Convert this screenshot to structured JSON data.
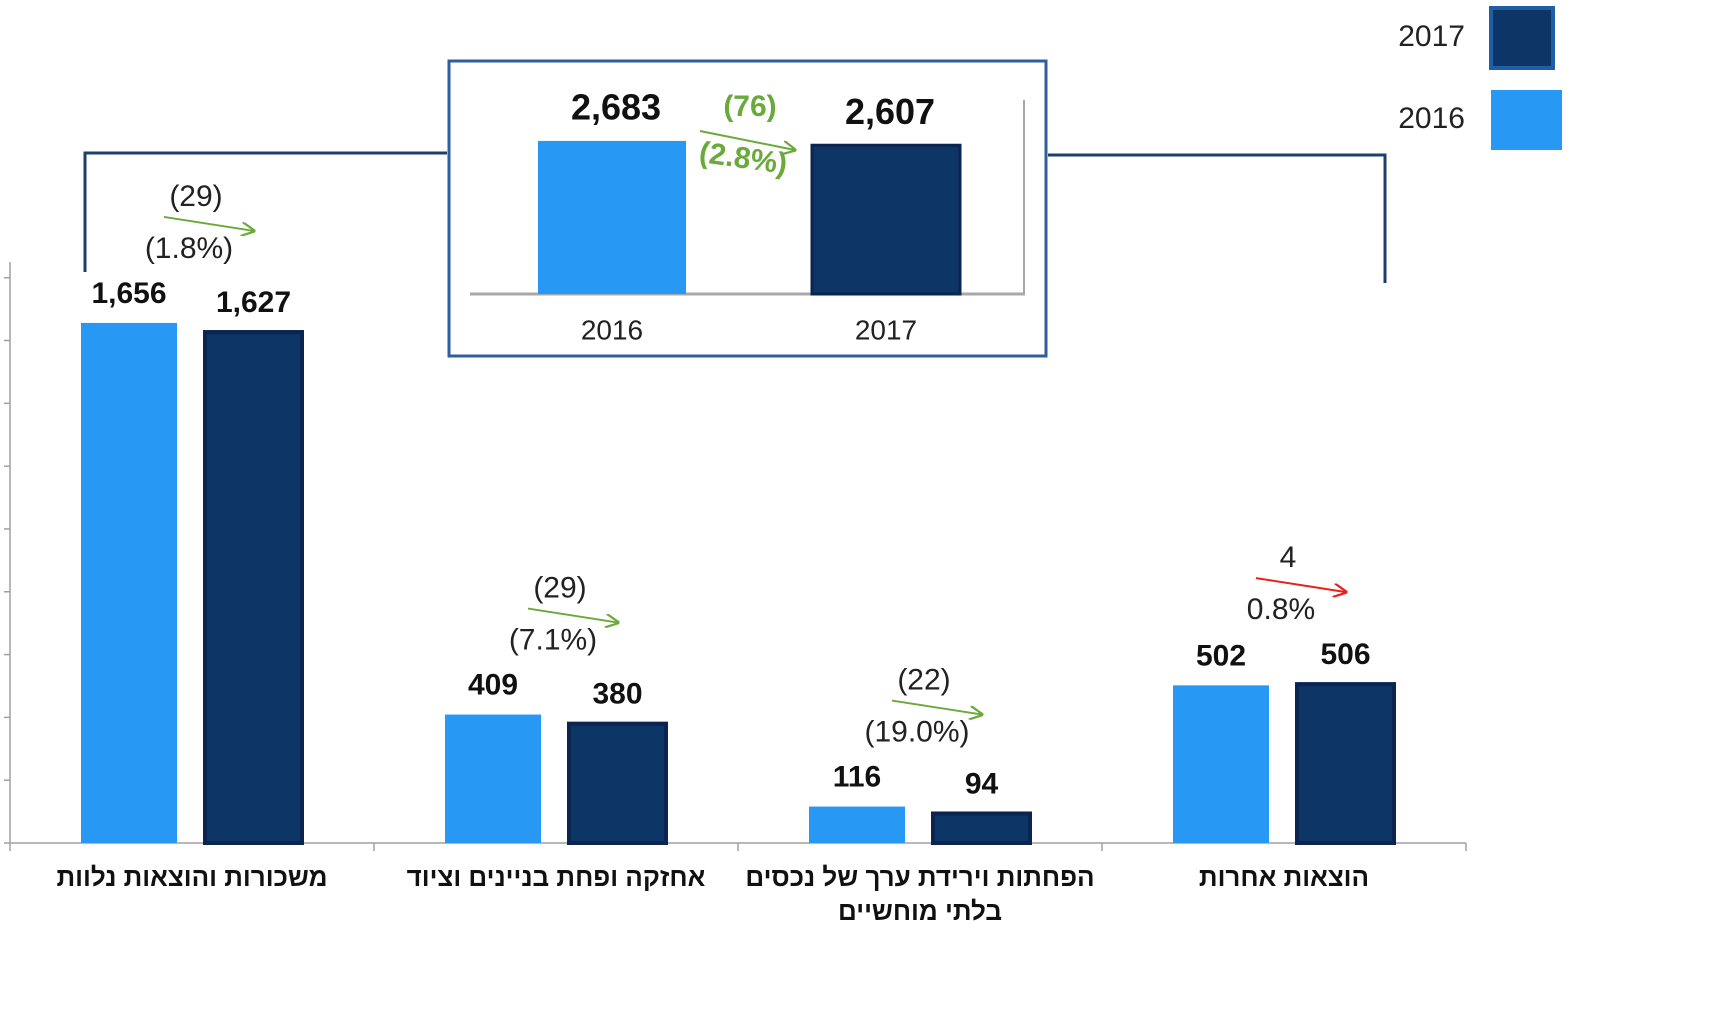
{
  "chart_data": [
    {
      "type": "bar",
      "categories": [
        "משכורות והוצאות נלוות",
        "אחזקה ופחת בניינים וציוד",
        "הפחתות וירידת ערך של נכסים בלתי מוחשיים",
        "הוצאות אחרות"
      ],
      "series": [
        {
          "name": "2016",
          "color": "#2898f5",
          "values": [
            1656,
            409,
            116,
            502
          ],
          "value_labels": [
            "1,656",
            "409",
            "116",
            "502"
          ]
        },
        {
          "name": "2017",
          "color": "#0d3566",
          "values": [
            1627,
            380,
            94,
            506
          ],
          "value_labels": [
            "1,627",
            "380",
            "94",
            "506"
          ]
        }
      ],
      "ylim": [
        0,
        1850
      ],
      "yticks": [
        0,
        200,
        400,
        600,
        800,
        1000,
        1200,
        1400,
        1600,
        1800
      ],
      "annotations": [
        {
          "change": "(29)",
          "percent": "(1.8%)",
          "color": "#6aaa3a"
        },
        {
          "change": "(29)",
          "percent": "(7.1%)",
          "color": "#6aaa3a"
        },
        {
          "change": "(22)",
          "percent": "(19.0%)",
          "color": "#6aaa3a"
        },
        {
          "change": "4",
          "percent": "0.8%",
          "color": "#e8221b"
        }
      ]
    },
    {
      "type": "bar",
      "categories": [
        "2016",
        "2017"
      ],
      "values": [
        2683,
        2607
      ],
      "value_labels": [
        "2,683",
        "2,607"
      ],
      "colors": [
        "#2898f5",
        "#0d3566"
      ],
      "ylim": [
        0,
        3400
      ],
      "annotation": {
        "change": "(76)",
        "percent": "(2.8%)",
        "color": "#6aaa3a"
      }
    }
  ]
}
